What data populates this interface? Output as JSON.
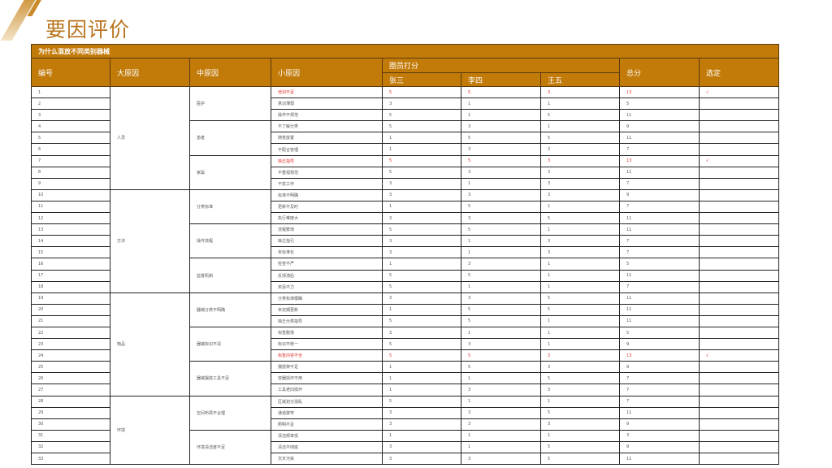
{
  "page_title": "要因评价",
  "table": {
    "caption": "为什么混放不同类别器械",
    "headers": {
      "id": "编号",
      "major": "大原因",
      "middle": "中原因",
      "minor": "小原因",
      "scoring": "圈员打分",
      "members": [
        "张三",
        "李四",
        "王五"
      ],
      "total": "总分",
      "selected": "选定"
    },
    "check_mark": "√",
    "highlight_color": "#e0302a",
    "groups": [
      {
        "major": "人员",
        "subs": [
          {
            "middle": "医护",
            "items": [
              {
                "id": "1",
                "minor": "培训不足",
                "scores": [
                  "5",
                  "5",
                  "3"
                ],
                "total": "13",
                "selected": true
              },
              {
                "id": "2",
                "minor": "意识薄弱",
                "scores": [
                  "3",
                  "1",
                  "1"
                ],
                "total": "5"
              },
              {
                "id": "3",
                "minor": "操作不规范",
                "scores": [
                  "5",
                  "1",
                  "5"
                ],
                "total": "11"
              }
            ]
          },
          {
            "middle": "患者",
            "items": [
              {
                "id": "4",
                "minor": "不了解分类",
                "scores": [
                  "5",
                  "3",
                  "1"
                ],
                "total": "9"
              },
              {
                "id": "5",
                "minor": "随意放置",
                "scores": [
                  "1",
                  "5",
                  "5"
                ],
                "total": "11"
              },
              {
                "id": "6",
                "minor": "不配合管理",
                "scores": [
                  "1",
                  "3",
                  "3"
                ],
                "total": "7"
              }
            ]
          },
          {
            "middle": "家属",
            "items": [
              {
                "id": "7",
                "minor": "缺乏指导",
                "scores": [
                  "5",
                  "5",
                  "3"
                ],
                "total": "13",
                "selected": true
              },
              {
                "id": "8",
                "minor": "不重视规范",
                "scores": [
                  "5",
                  "3",
                  "3"
                ],
                "total": "11"
              },
              {
                "id": "9",
                "minor": "干扰工作",
                "scores": [
                  "3",
                  "1",
                  "3"
                ],
                "total": "7"
              }
            ]
          }
        ]
      },
      {
        "major": "方法",
        "subs": [
          {
            "middle": "分类标准",
            "items": [
              {
                "id": "10",
                "minor": "标准不明确",
                "scores": [
                  "3",
                  "3",
                  "3"
                ],
                "total": "9"
              },
              {
                "id": "11",
                "minor": "更新不及时",
                "scores": [
                  "1",
                  "5",
                  "1"
                ],
                "total": "7"
              },
              {
                "id": "12",
                "minor": "执行难度大",
                "scores": [
                  "3",
                  "3",
                  "5"
                ],
                "total": "11"
              }
            ]
          },
          {
            "middle": "操作流程",
            "items": [
              {
                "id": "13",
                "minor": "流程繁琐",
                "scores": [
                  "5",
                  "5",
                  "1"
                ],
                "total": "11"
              },
              {
                "id": "14",
                "minor": "缺乏指引",
                "scores": [
                  "3",
                  "1",
                  "3"
                ],
                "total": "7"
              },
              {
                "id": "15",
                "minor": "未标准化",
                "scores": [
                  "3",
                  "1",
                  "3"
                ],
                "total": "7"
              }
            ]
          },
          {
            "middle": "监督机制",
            "items": [
              {
                "id": "16",
                "minor": "检查不严",
                "scores": [
                  "1",
                  "3",
                  "1"
                ],
                "total": "5"
              },
              {
                "id": "17",
                "minor": "反馈滞后",
                "scores": [
                  "5",
                  "5",
                  "1"
                ],
                "total": "11"
              },
              {
                "id": "18",
                "minor": "奖惩不力",
                "scores": [
                  "5",
                  "1",
                  "1"
                ],
                "total": "7"
              }
            ]
          }
        ]
      },
      {
        "major": "物品",
        "subs": [
          {
            "middle": "器械分类不明确",
            "items": [
              {
                "id": "19",
                "minor": "分类标准模糊",
                "scores": [
                  "3",
                  "3",
                  "5"
                ],
                "total": "11"
              },
              {
                "id": "20",
                "minor": "未定期更新",
                "scores": [
                  "1",
                  "5",
                  "5"
                ],
                "total": "11"
              },
              {
                "id": "21",
                "minor": "缺乏分类指导",
                "scores": [
                  "5",
                  "5",
                  "1"
                ],
                "total": "11"
              }
            ]
          },
          {
            "middle": "器械标识不清",
            "items": [
              {
                "id": "22",
                "minor": "标签脱落",
                "scores": [
                  "3",
                  "1",
                  "1"
                ],
                "total": "5"
              },
              {
                "id": "23",
                "minor": "标识不统一",
                "scores": [
                  "5",
                  "3",
                  "1"
                ],
                "total": "9"
              },
              {
                "id": "24",
                "minor": "标签内容不全",
                "scores": [
                  "5",
                  "5",
                  "3"
                ],
                "total": "13",
                "selected": true
              }
            ]
          },
          {
            "middle": "器械摆放工具不足",
            "items": [
              {
                "id": "25",
                "minor": "摆放架不足",
                "scores": [
                  "1",
                  "5",
                  "3"
                ],
                "total": "9"
              },
              {
                "id": "26",
                "minor": "容器损坏不用",
                "scores": [
                  "1",
                  "1",
                  "5"
                ],
                "total": "7"
              },
              {
                "id": "27",
                "minor": "工具老旧损坏",
                "scores": [
                  "1",
                  "3",
                  "3"
                ],
                "total": "7"
              }
            ]
          }
        ]
      },
      {
        "major": "环境",
        "subs": [
          {
            "middle": "空间布局不合理",
            "items": [
              {
                "id": "28",
                "minor": "区域划分混乱",
                "scores": [
                  "5",
                  "1",
                  "1"
                ],
                "total": "7"
              },
              {
                "id": "29",
                "minor": "通道狭窄",
                "scores": [
                  "3",
                  "3",
                  "5"
                ],
                "total": "11"
              },
              {
                "id": "30",
                "minor": "照明不足",
                "scores": [
                  "3",
                  "3",
                  "3"
                ],
                "total": "9"
              }
            ]
          },
          {
            "middle": "环境清洁度不足",
            "items": [
              {
                "id": "31",
                "minor": "清洁频率低",
                "scores": [
                  "1",
                  "1",
                  "1"
                ],
                "total": "3"
              },
              {
                "id": "32",
                "minor": "清洁不彻底",
                "scores": [
                  "3",
                  "1",
                  "5"
                ],
                "total": "9"
              },
              {
                "id": "33",
                "minor": "交叉污染",
                "scores": [
                  "3",
                  "3",
                  "5"
                ],
                "total": "11"
              }
            ]
          }
        ]
      }
    ]
  }
}
